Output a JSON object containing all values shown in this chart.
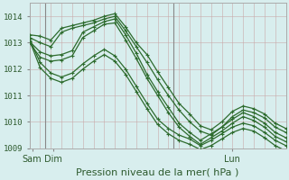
{
  "title": "Pression niveau de la mer( hPa )",
  "background_color": "#cce8e8",
  "grid_color_major": "#c8a0a0",
  "grid_color_minor": "#d4b8b8",
  "line_color": "#2d6b2d",
  "plot_bg": "#d8eeee",
  "xlim": [
    0,
    48
  ],
  "ylim": [
    1009.0,
    1014.5
  ],
  "yticks": [
    1009,
    1010,
    1011,
    1012,
    1013,
    1014
  ],
  "x_day_labels": [
    [
      "Sam",
      0.5
    ],
    [
      "Dim",
      4.5
    ],
    [
      "Lun",
      38
    ]
  ],
  "day_vlines": [
    3,
    27
  ],
  "series": [
    {
      "x": [
        0,
        2,
        4,
        6,
        8,
        10,
        12,
        14,
        16,
        18,
        20,
        22,
        24,
        26,
        28,
        30,
        32,
        34,
        36,
        38,
        40,
        42,
        44,
        46,
        48
      ],
      "y": [
        1013.3,
        1013.25,
        1013.1,
        1013.55,
        1013.65,
        1013.75,
        1013.85,
        1014.0,
        1014.1,
        1013.6,
        1013.0,
        1012.55,
        1011.9,
        1011.3,
        1010.7,
        1010.3,
        1009.85,
        1009.7,
        1010.0,
        1010.4,
        1010.6,
        1010.5,
        1010.3,
        1009.95,
        1009.75
      ]
    },
    {
      "x": [
        0,
        2,
        4,
        6,
        8,
        10,
        12,
        14,
        16,
        18,
        20,
        22,
        24,
        26,
        28,
        30,
        32,
        34,
        36,
        38,
        40,
        42,
        44,
        46,
        48
      ],
      "y": [
        1013.2,
        1013.0,
        1012.85,
        1013.4,
        1013.55,
        1013.65,
        1013.75,
        1013.9,
        1014.0,
        1013.45,
        1012.85,
        1012.25,
        1011.6,
        1011.0,
        1010.45,
        1010.0,
        1009.65,
        1009.5,
        1009.8,
        1010.2,
        1010.45,
        1010.35,
        1010.15,
        1009.8,
        1009.6
      ]
    },
    {
      "x": [
        0,
        2,
        4,
        6,
        8,
        10,
        12,
        14,
        16,
        18,
        20,
        22,
        24,
        26,
        28,
        30,
        32,
        34,
        36,
        38,
        40,
        42,
        44,
        46,
        48
      ],
      "y": [
        1013.05,
        1012.65,
        1012.5,
        1012.55,
        1012.7,
        1013.4,
        1013.6,
        1013.8,
        1013.9,
        1013.3,
        1012.6,
        1011.8,
        1011.15,
        1010.55,
        1009.95,
        1009.6,
        1009.3,
        1009.55,
        1009.8,
        1010.1,
        1010.35,
        1010.2,
        1009.95,
        1009.6,
        1009.4
      ]
    },
    {
      "x": [
        0,
        2,
        4,
        6,
        8,
        10,
        12,
        14,
        16,
        18,
        20,
        22,
        24,
        26,
        28,
        30,
        32,
        34,
        36,
        38,
        40,
        42,
        44,
        46,
        48
      ],
      "y": [
        1013.0,
        1012.45,
        1012.3,
        1012.35,
        1012.5,
        1013.2,
        1013.45,
        1013.7,
        1013.75,
        1013.1,
        1012.4,
        1011.65,
        1011.0,
        1010.35,
        1009.8,
        1009.45,
        1009.15,
        1009.4,
        1009.65,
        1009.95,
        1010.2,
        1010.05,
        1009.8,
        1009.45,
        1009.25
      ]
    },
    {
      "x": [
        0,
        2,
        4,
        6,
        8,
        10,
        12,
        14,
        16,
        18,
        20,
        22,
        24,
        26,
        28,
        30,
        32,
        34,
        36,
        38,
        40,
        42,
        44,
        46,
        48
      ],
      "y": [
        1013.15,
        1012.25,
        1011.85,
        1011.7,
        1011.85,
        1012.2,
        1012.5,
        1012.75,
        1012.5,
        1012.0,
        1011.35,
        1010.7,
        1010.1,
        1009.75,
        1009.5,
        1009.35,
        1009.1,
        1009.3,
        1009.55,
        1009.8,
        1009.95,
        1009.85,
        1009.6,
        1009.3,
        1009.1
      ]
    },
    {
      "x": [
        0,
        2,
        4,
        6,
        8,
        10,
        12,
        14,
        16,
        18,
        20,
        22,
        24,
        26,
        28,
        30,
        32,
        34,
        36,
        38,
        40,
        42,
        44,
        46,
        48
      ],
      "y": [
        1013.1,
        1012.05,
        1011.65,
        1011.5,
        1011.65,
        1012.0,
        1012.3,
        1012.55,
        1012.3,
        1011.8,
        1011.15,
        1010.5,
        1009.9,
        1009.55,
        1009.3,
        1009.15,
        1008.95,
        1009.1,
        1009.35,
        1009.6,
        1009.75,
        1009.65,
        1009.4,
        1009.1,
        1008.9
      ]
    }
  ],
  "marker_size": 2.0,
  "linewidth": 0.9,
  "title_fontsize": 8.0,
  "tick_fontsize": 6.5
}
